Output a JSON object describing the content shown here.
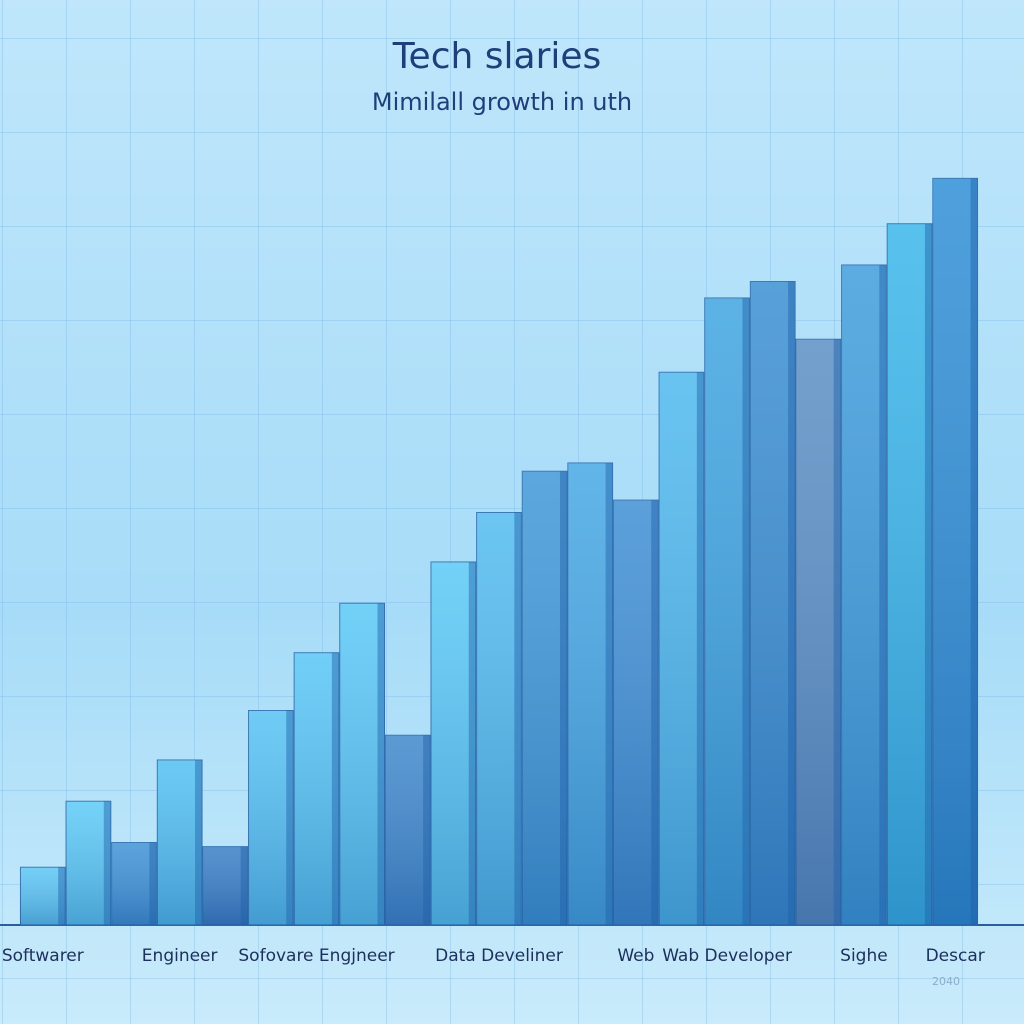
{
  "chart_data": {
    "type": "bar",
    "title": "Tech slaries",
    "subtitle": "Mimilall growth in uth",
    "annotation": "2040",
    "categories": [
      "Softwarer",
      null,
      null,
      "Engineer",
      null,
      null,
      "Sofovare Engjneer",
      null,
      null,
      null,
      "Data Develiner",
      null,
      null,
      "Web",
      null,
      "Wab Developer",
      null,
      null,
      "Sighe",
      null,
      "Descar"
    ],
    "values": [
      7,
      15,
      10,
      20,
      9.5,
      26,
      33,
      39,
      23,
      44,
      50,
      55,
      56,
      51.5,
      67,
      76,
      78,
      71,
      80,
      85,
      90.5
    ],
    "colors": [
      "#5cc6f4",
      "#5ccaf6",
      "#3f93d6",
      "#52c0f2",
      "#3a7fc6",
      "#56c2f3",
      "#58c6f5",
      "#5ac8f6",
      "#3f88cc",
      "#5ac9f6",
      "#52bcef",
      "#3f98d8",
      "#46a8e4",
      "#3f8fd4",
      "#4fb9ee",
      "#3fa5e0",
      "#3a8fd2",
      "#5b8fc4",
      "#3f9ddc",
      "#3ab6ea",
      "#2f8fd6"
    ],
    "ylim": [
      0,
      100
    ]
  }
}
